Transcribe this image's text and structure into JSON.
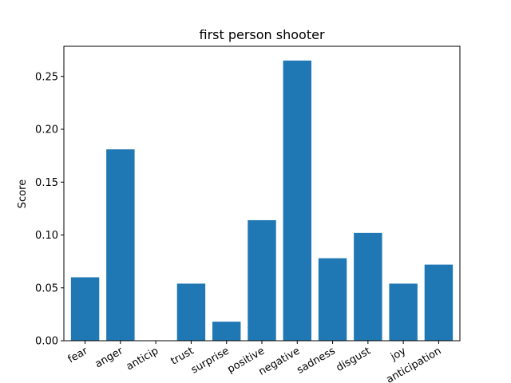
{
  "chart_data": {
    "type": "bar",
    "title": "first person shooter",
    "xlabel": "",
    "ylabel": "Score",
    "categories": [
      "fear",
      "anger",
      "anticip",
      "trust",
      "surprise",
      "positive",
      "negative",
      "sadness",
      "disgust",
      "joy",
      "anticipation"
    ],
    "values": [
      0.06,
      0.181,
      0.0,
      0.054,
      0.018,
      0.114,
      0.265,
      0.078,
      0.102,
      0.054,
      0.072
    ],
    "ylim": [
      0,
      0.2785
    ],
    "yticks": [
      0.0,
      0.05,
      0.1,
      0.15,
      0.2,
      0.25
    ],
    "ytick_labels": [
      "0.00",
      "0.05",
      "0.10",
      "0.15",
      "0.20",
      "0.25"
    ],
    "grid": false,
    "legend": "none",
    "bar_color": "#1f77b4"
  }
}
